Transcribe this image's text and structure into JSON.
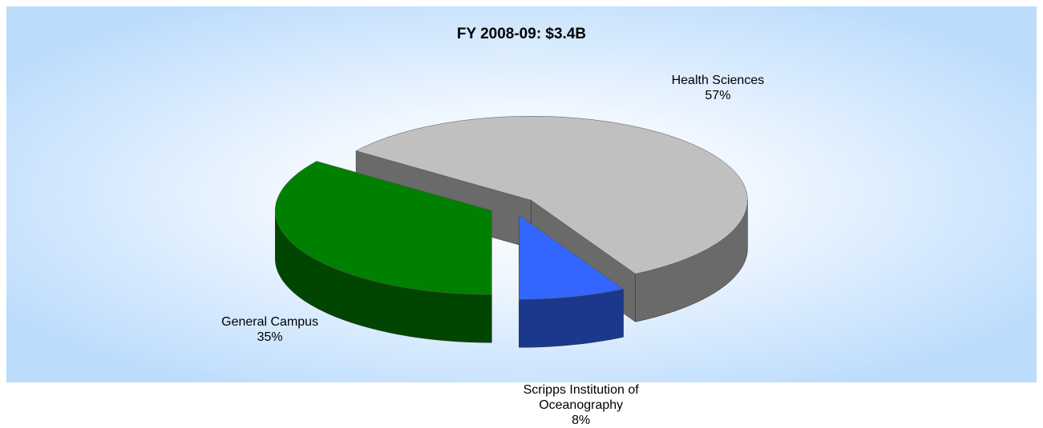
{
  "chart_data": {
    "type": "pie3d",
    "title": "FY 2008-09:  $3.4B",
    "categories": [
      "Health Sciences",
      "Scripps Institution of Oceanography",
      "General Campus"
    ],
    "values": [
      57,
      8,
      35
    ],
    "value_labels": [
      "57%",
      "8%",
      "35%"
    ],
    "colors": [
      "#c0c0c0",
      "#3366ff",
      "#008000"
    ]
  }
}
